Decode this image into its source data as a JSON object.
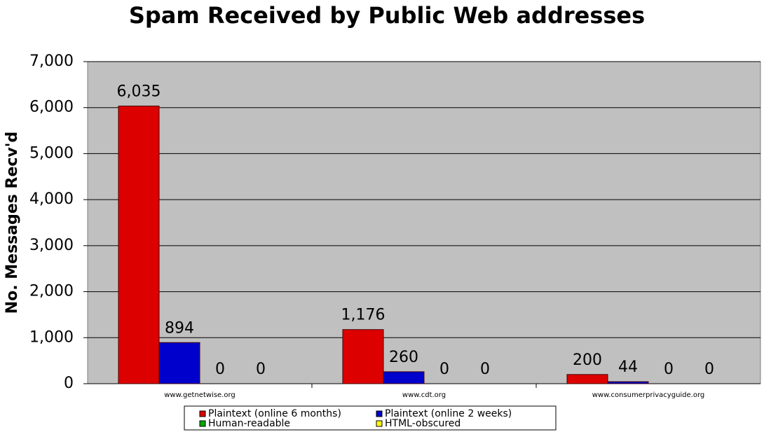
{
  "chart_data": {
    "type": "bar",
    "title": "Spam Received by Public Web addresses",
    "y_label": "No. Messages Recv'd",
    "categories": [
      "www.getnetwise.org",
      "www.cdt.org",
      "www.consumerprivacyguide.org"
    ],
    "series": [
      {
        "name": "Plaintext (online 6 months)",
        "color": "#dd0000",
        "values": [
          6035,
          1176,
          200
        ],
        "value_labels": [
          "6,035",
          "1,176",
          "200"
        ]
      },
      {
        "name": "Plaintext (online 2 weeks)",
        "color": "#0000cc",
        "values": [
          894,
          260,
          44
        ]
      },
      {
        "name": "Human-readable",
        "color": "#00aa00",
        "values": [
          0,
          0,
          0
        ]
      },
      {
        "name": "HTML-obscured",
        "color": "#ffff00",
        "values": [
          0,
          0,
          0
        ]
      }
    ],
    "ylim": [
      0,
      7000
    ],
    "yticks": [
      0,
      {
        "value": 1000,
        "label": "1,000"
      },
      {
        "value": 2000,
        "label": "2,000"
      },
      {
        "value": 3000,
        "label": "3,000"
      },
      {
        "value": 4000,
        "label": "4,000"
      },
      {
        "value": 5000,
        "label": "5,000"
      },
      {
        "value": 6000,
        "label": "6,000"
      },
      {
        "value": 7000,
        "label": "7,000"
      }
    ],
    "grid": true
  }
}
